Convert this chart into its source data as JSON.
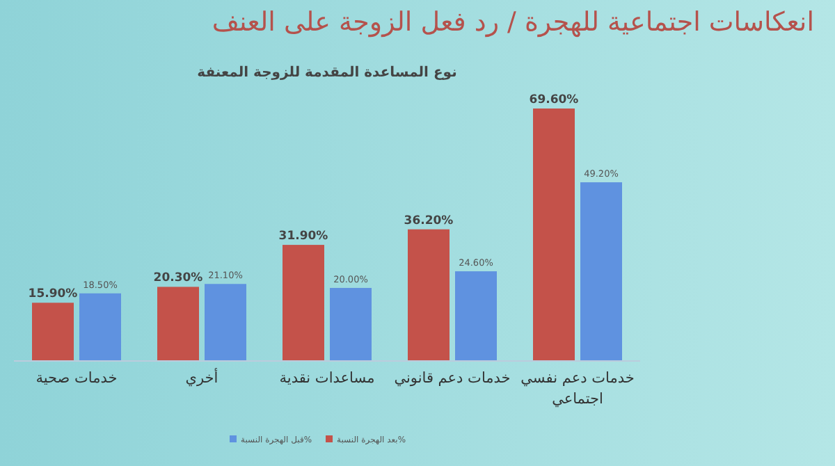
{
  "chart_data": {
    "type": "bar",
    "title": "انعكاسات اجتماعية للهجرة / رد فعل الزوجة على العنف",
    "subtitle": "نوع المساعدة المقدمة للزوجة المعنفة",
    "categories": [
      "خدمات صحية",
      "أخري",
      "مساعدات نقدية",
      "خدمات دعم قانوني",
      "خدمات دعم نفسي اجتماعي"
    ],
    "series": [
      {
        "name": "بعد الهجرة النسبة%",
        "color": "#c4524a",
        "values": [
          15.9,
          20.3,
          31.9,
          36.2,
          69.6
        ],
        "value_labels": [
          "15.90%",
          "20.30%",
          "31.90%",
          "36.20%",
          "69.60%"
        ]
      },
      {
        "name": "قبل الهجرة النسبة%",
        "color": "#5f92e0",
        "values": [
          18.5,
          21.1,
          20.0,
          24.6,
          49.2
        ],
        "value_labels": [
          "18.50%",
          "21.10%",
          "20.00%",
          "24.60%",
          "49.20%"
        ]
      }
    ],
    "legend": "bottom"
  }
}
